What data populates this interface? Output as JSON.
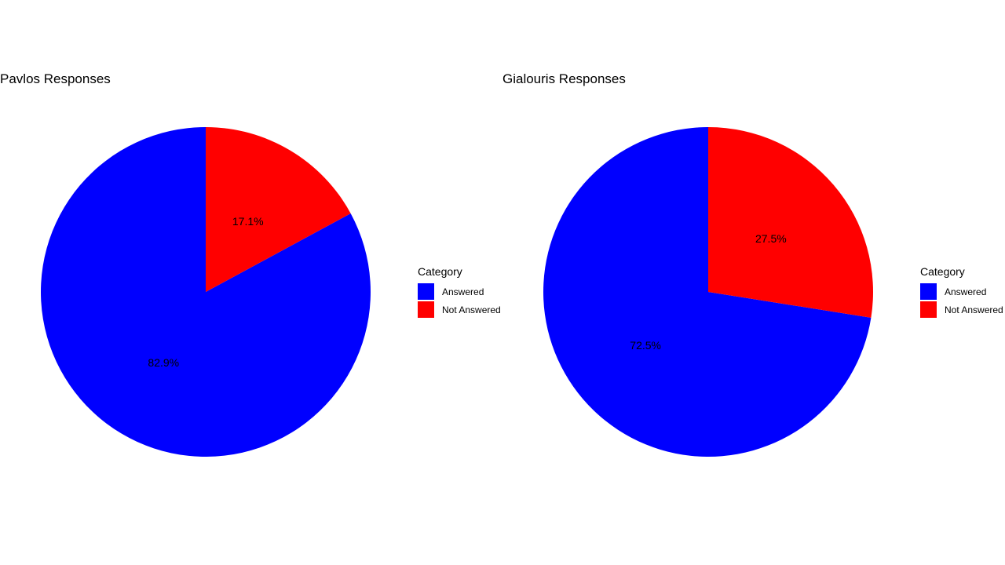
{
  "chart_data": [
    {
      "type": "pie",
      "title": "Pavlos Responses",
      "legend_title": "Category",
      "legend_position": "right",
      "categories": [
        "Answered",
        "Not Answered"
      ],
      "values": [
        82.9,
        17.1
      ],
      "labels": [
        "82.9%",
        "17.1%"
      ],
      "colors": [
        "#0000ff",
        "#ff0000"
      ]
    },
    {
      "type": "pie",
      "title": "Gialouris Responses",
      "legend_title": "Category",
      "legend_position": "right",
      "categories": [
        "Answered",
        "Not Answered"
      ],
      "values": [
        72.5,
        27.5
      ],
      "labels": [
        "72.5%",
        "27.5%"
      ],
      "colors": [
        "#0000ff",
        "#ff0000"
      ]
    }
  ]
}
